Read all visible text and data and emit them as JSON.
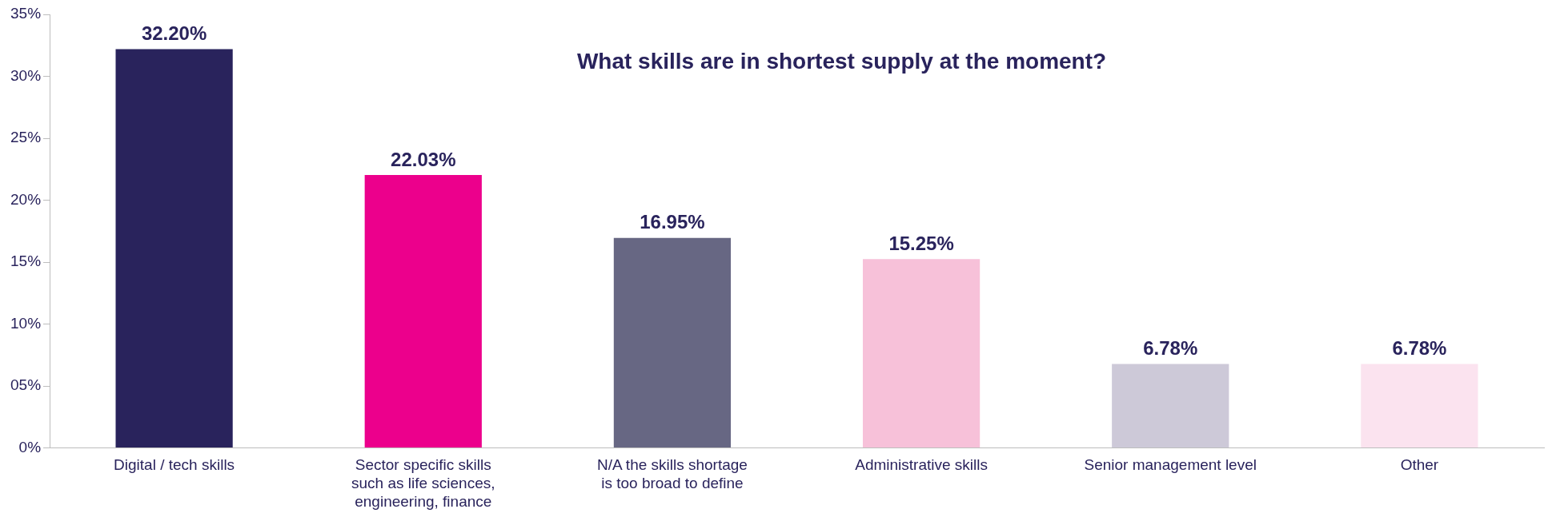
{
  "chart_data": {
    "type": "bar",
    "title": "What skills are in shortest supply at the moment?",
    "categories": [
      "Digital / tech skills",
      "Sector specific skills such as life sciences, engineering, finance",
      "N/A the skills shortage is too broad to define",
      "Administrative skills",
      "Senior management level",
      "Other"
    ],
    "values": [
      32.2,
      22.03,
      16.95,
      15.25,
      6.78,
      6.78
    ],
    "colors": [
      "#29235c",
      "#ec008c",
      "#676783",
      "#f7c1d9",
      "#cdc9d8",
      "#fbe3ef"
    ],
    "value_labels": [
      "32.20%",
      "22.03%",
      "16.95%",
      "15.25%",
      "6.78%",
      "6.78%"
    ],
    "ylim": [
      0,
      35
    ],
    "yticks": [
      {
        "value": 0,
        "label": "0%"
      },
      {
        "value": 5,
        "label": "05%"
      },
      {
        "value": 10,
        "label": "10%"
      },
      {
        "value": 15,
        "label": "15%"
      },
      {
        "value": 20,
        "label": "20%"
      },
      {
        "value": 25,
        "label": "25%"
      },
      {
        "value": 30,
        "label": "30%"
      },
      {
        "value": 35,
        "label": "35%"
      }
    ],
    "grid": false,
    "legend": false
  }
}
